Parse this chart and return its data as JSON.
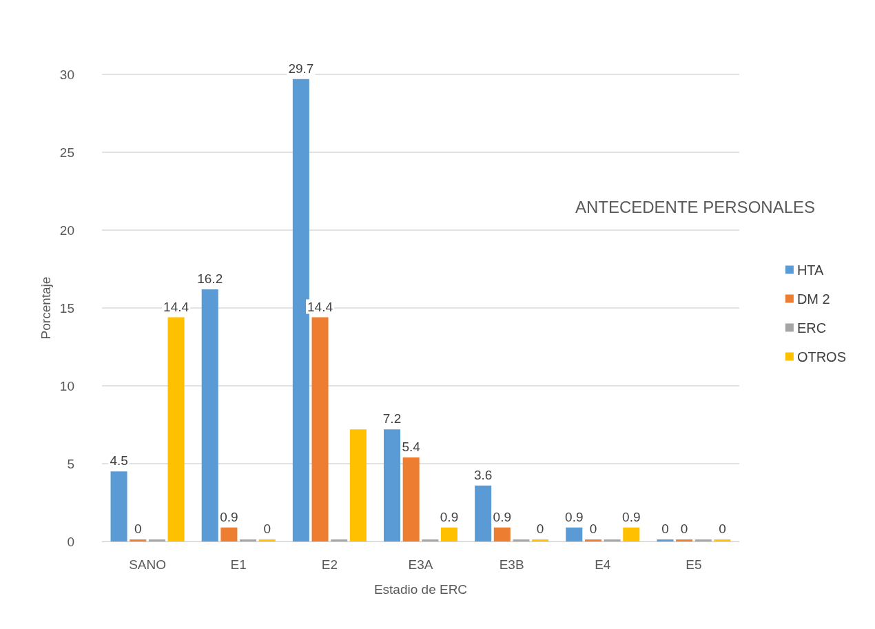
{
  "chart_data": {
    "type": "bar",
    "title": "ANTECEDENTE PERSONALES",
    "xlabel": "Estadio de ERC",
    "ylabel": "Porcentaje",
    "categories": [
      "SANO",
      "E1",
      "E2",
      "E3A",
      "E3B",
      "E4",
      "E5"
    ],
    "series": [
      {
        "name": "HTA",
        "color": "#5b9bd5",
        "values": [
          4.5,
          16.2,
          29.7,
          7.2,
          3.6,
          0.9,
          0
        ],
        "value_labels": [
          "4.5",
          "16.2",
          "29.7",
          "7.2",
          "3.6",
          "0.9",
          "0"
        ]
      },
      {
        "name": "DM 2",
        "color": "#ed7d31",
        "values": [
          0,
          0.9,
          14.4,
          5.4,
          0.9,
          0,
          0
        ],
        "value_labels": [
          "0",
          "0.9",
          "14.4",
          "5.4",
          "0.9",
          "0",
          "0"
        ]
      },
      {
        "name": "ERC",
        "color": "#a5a5a5",
        "values": [
          0,
          0,
          0,
          0,
          0,
          0,
          0
        ],
        "value_labels": [
          null,
          null,
          null,
          null,
          null,
          null,
          null
        ]
      },
      {
        "name": "OTROS",
        "color": "#ffc000",
        "values": [
          14.4,
          0,
          7.2,
          0.9,
          0,
          0.9,
          0
        ],
        "value_labels": [
          "14.4",
          "0",
          null,
          "0.9",
          "0",
          "0.9",
          "0"
        ]
      }
    ],
    "ylim": [
      0,
      30
    ],
    "yticks": [
      0,
      5,
      10,
      15,
      20,
      25,
      30
    ],
    "grid": "y",
    "legend": "right"
  }
}
